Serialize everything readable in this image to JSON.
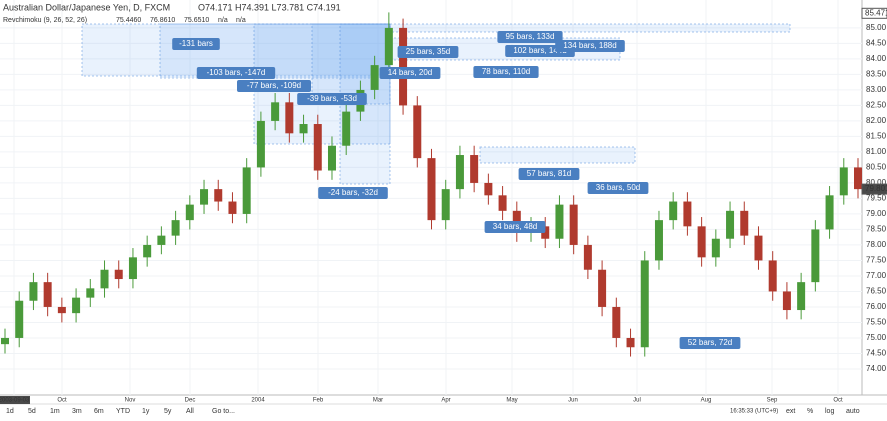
{
  "header": {
    "symbol": "Australian Dollar/Japanese Yen, D, FXCM",
    "ohlc": "O74.171 H74.391 L73.781 C74.191",
    "indicator": "Revchimoku (9, 26, 52, 26)",
    "indicator_values": [
      "75.4460",
      "76.8610",
      "75.6510",
      "n/a",
      "n/a"
    ]
  },
  "chart": {
    "ylim": [
      73.16,
      85.9
    ],
    "yticks": [
      {
        "value": 74,
        "label": "74.00"
      },
      {
        "value": 74.5,
        "label": "74.50"
      },
      {
        "value": 75,
        "label": "75.00"
      },
      {
        "value": 75.5,
        "label": "75.50"
      },
      {
        "value": 76,
        "label": "76.00"
      },
      {
        "value": 76.5,
        "label": "76.50"
      },
      {
        "value": 77,
        "label": "77.00"
      },
      {
        "value": 77.5,
        "label": "77.50"
      },
      {
        "value": 78,
        "label": "78.00"
      },
      {
        "value": 78.5,
        "label": "78.50"
      },
      {
        "value": 79,
        "label": "79.00"
      },
      {
        "value": 79.5,
        "label": "79.50"
      },
      {
        "value": 80,
        "label": "80.00"
      },
      {
        "value": 80.5,
        "label": "80.50"
      },
      {
        "value": 81,
        "label": "81.00"
      },
      {
        "value": 81.5,
        "label": "81.50"
      },
      {
        "value": 82,
        "label": "82.00"
      },
      {
        "value": 82.5,
        "label": "82.50"
      },
      {
        "value": 83,
        "label": "83.00"
      },
      {
        "value": 83.5,
        "label": "83.50"
      },
      {
        "value": 84,
        "label": "84.00"
      },
      {
        "value": 84.5,
        "label": "84.50"
      },
      {
        "value": 85,
        "label": "85.00"
      }
    ],
    "price_marks": [
      {
        "value": 85.471,
        "label": "85.471"
      },
      {
        "value": 79.801,
        "label": "79.801"
      }
    ],
    "x_labels": [
      "2003-09-03",
      "Oct",
      "Nov",
      "Dec",
      "2004",
      "Feb",
      "Mar",
      "Apr",
      "May",
      "Jun",
      "Jul",
      "Aug",
      "Sep",
      "Oct"
    ],
    "candles": [
      [
        74.8,
        75.3,
        74.5,
        75.0
      ],
      [
        75.0,
        76.5,
        74.7,
        76.2
      ],
      [
        76.2,
        77.1,
        75.9,
        76.8
      ],
      [
        76.8,
        77.1,
        75.7,
        76.0
      ],
      [
        76.0,
        76.3,
        75.5,
        75.8
      ],
      [
        75.8,
        76.6,
        75.5,
        76.3
      ],
      [
        76.3,
        76.9,
        76.0,
        76.6
      ],
      [
        76.6,
        77.5,
        76.3,
        77.2
      ],
      [
        77.2,
        77.5,
        76.6,
        76.9
      ],
      [
        76.9,
        77.9,
        76.6,
        77.6
      ],
      [
        77.6,
        78.3,
        77.3,
        78.0
      ],
      [
        78.0,
        78.6,
        77.7,
        78.3
      ],
      [
        78.3,
        79.1,
        78.0,
        78.8
      ],
      [
        78.8,
        79.6,
        78.5,
        79.3
      ],
      [
        79.3,
        80.1,
        79.0,
        79.8
      ],
      [
        79.8,
        80.1,
        79.1,
        79.4
      ],
      [
        79.4,
        79.7,
        78.7,
        79.0
      ],
      [
        79.0,
        80.8,
        78.7,
        80.5
      ],
      [
        80.5,
        82.3,
        80.2,
        82.0
      ],
      [
        82.0,
        82.9,
        81.7,
        82.6
      ],
      [
        82.6,
        82.9,
        81.3,
        81.6
      ],
      [
        81.6,
        82.2,
        81.3,
        81.9
      ],
      [
        81.9,
        82.2,
        80.1,
        80.4
      ],
      [
        80.4,
        81.5,
        80.1,
        81.2
      ],
      [
        81.2,
        82.6,
        80.9,
        82.3
      ],
      [
        82.3,
        83.3,
        82.0,
        83.0
      ],
      [
        83.0,
        84.1,
        82.7,
        83.8
      ],
      [
        83.8,
        85.5,
        83.5,
        85.0
      ],
      [
        85.0,
        85.3,
        82.2,
        82.5
      ],
      [
        82.5,
        82.8,
        80.5,
        80.8
      ],
      [
        80.8,
        81.1,
        78.5,
        78.8
      ],
      [
        78.8,
        80.1,
        78.5,
        79.8
      ],
      [
        79.8,
        81.2,
        79.5,
        80.9
      ],
      [
        80.9,
        81.2,
        79.7,
        80.0
      ],
      [
        80.0,
        80.3,
        79.3,
        79.6
      ],
      [
        79.6,
        79.9,
        78.8,
        79.1
      ],
      [
        79.1,
        79.4,
        78.1,
        78.4
      ],
      [
        78.4,
        78.9,
        78.1,
        78.6
      ],
      [
        78.6,
        78.9,
        77.9,
        78.2
      ],
      [
        78.2,
        79.6,
        77.9,
        79.3
      ],
      [
        79.3,
        79.6,
        77.7,
        78.0
      ],
      [
        78.0,
        78.3,
        76.9,
        77.2
      ],
      [
        77.2,
        77.5,
        75.7,
        76.0
      ],
      [
        76.0,
        76.3,
        74.7,
        75.0
      ],
      [
        75.0,
        75.3,
        74.4,
        74.7
      ],
      [
        74.7,
        77.8,
        74.4,
        77.5
      ],
      [
        77.5,
        79.1,
        77.2,
        78.8
      ],
      [
        78.8,
        79.7,
        78.5,
        79.4
      ],
      [
        79.4,
        79.7,
        78.3,
        78.6
      ],
      [
        78.6,
        78.9,
        77.3,
        77.6
      ],
      [
        77.6,
        78.5,
        77.3,
        78.2
      ],
      [
        78.2,
        79.4,
        77.9,
        79.1
      ],
      [
        79.1,
        79.4,
        78.0,
        78.3
      ],
      [
        78.3,
        78.6,
        77.2,
        77.5
      ],
      [
        77.5,
        77.8,
        76.2,
        76.5
      ],
      [
        76.5,
        76.8,
        75.6,
        75.9
      ],
      [
        75.9,
        77.1,
        75.6,
        76.8
      ],
      [
        76.8,
        78.8,
        76.5,
        78.5
      ],
      [
        78.5,
        79.9,
        78.2,
        79.6
      ],
      [
        79.6,
        80.8,
        79.3,
        80.5
      ],
      [
        80.5,
        80.8,
        79.5,
        79.8
      ]
    ],
    "ranges": [
      "-131 bars",
      "-103 bars, -147d",
      "-77 bars, -109d",
      "-39 bars, -53d",
      "-24 bars, -32d",
      "14 bars, 20d",
      "25 bars, 35d",
      "78 bars, 110d",
      "95 bars, 133d",
      "102 bars, 144d",
      "134 bars, 188d",
      "57 bars, 81d",
      "36 bars, 50d",
      "34 bars, 48d",
      "52 bars, 72d"
    ]
  },
  "footer": {
    "buttons": [
      "1d",
      "5d",
      "1m",
      "3m",
      "6m",
      "YTD",
      "1y",
      "5y",
      "All",
      "Go to..."
    ],
    "clock": "16:35:33 (UTC+9)",
    "options": [
      "ext",
      "%",
      "log",
      "auto"
    ]
  }
}
